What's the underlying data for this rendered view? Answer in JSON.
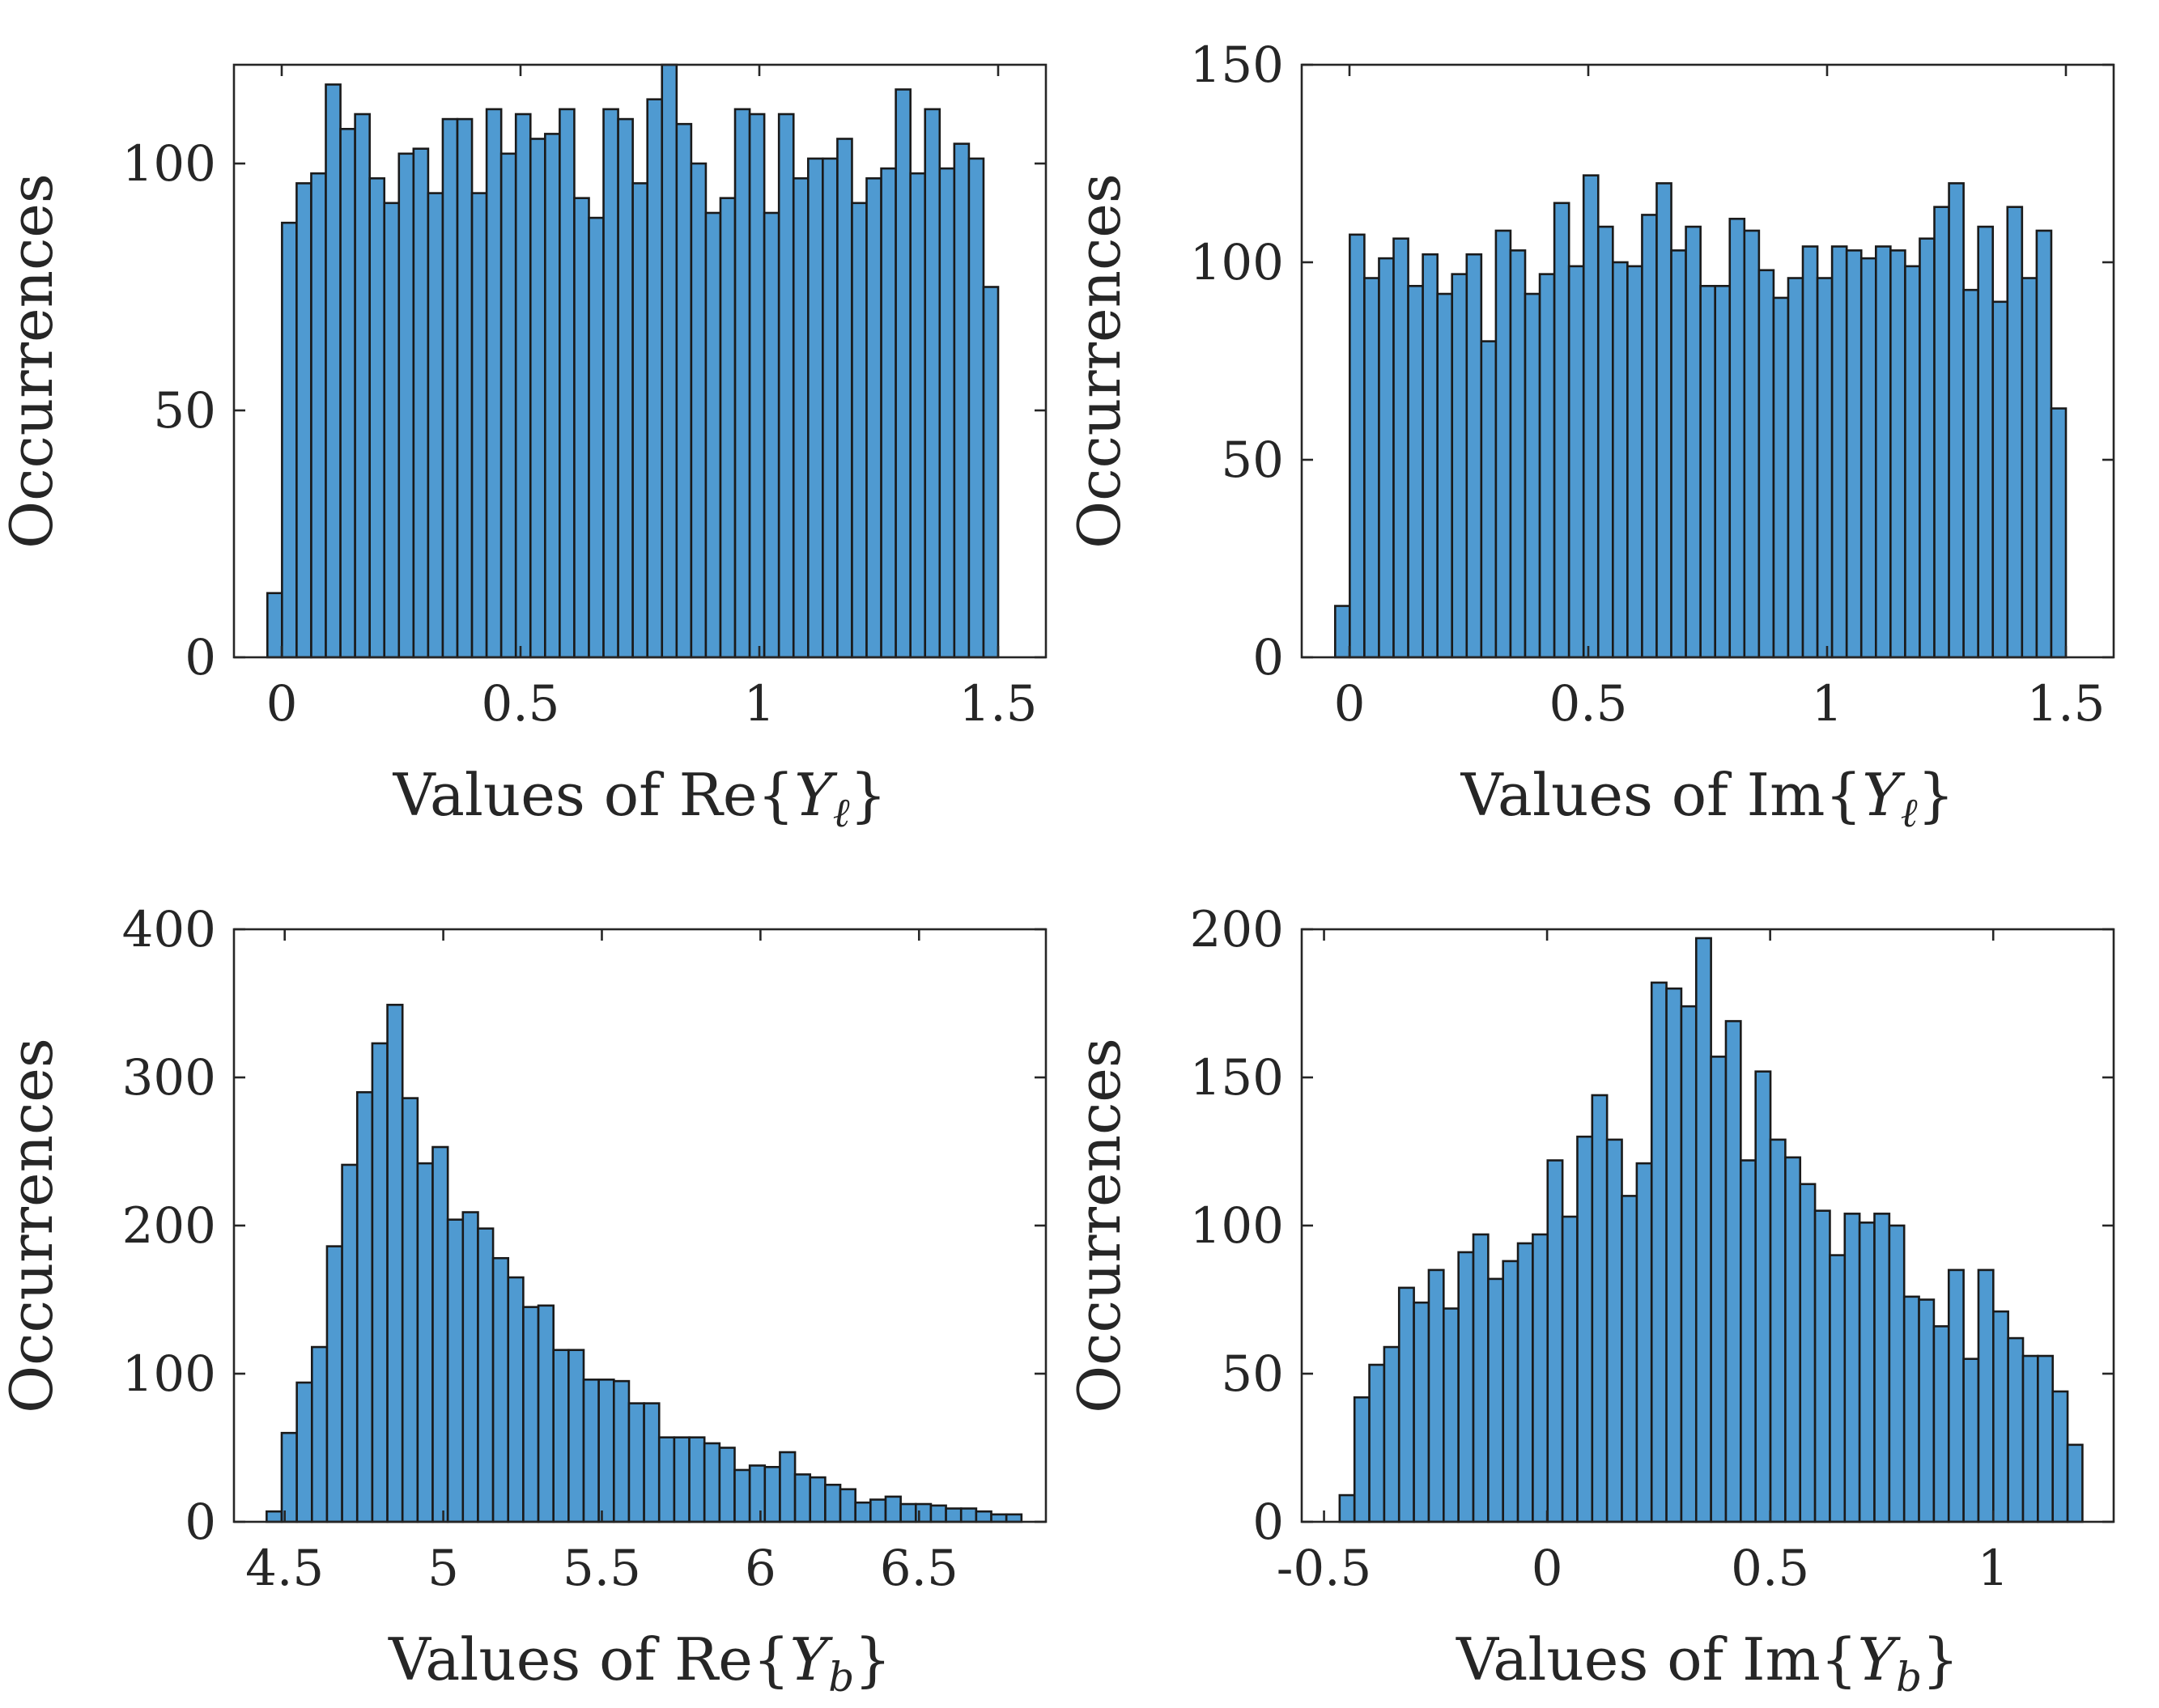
{
  "figure": {
    "description_free": true
  },
  "colors": {
    "bar_fill": "#4f9ad1",
    "bar_edge": "#1a1a1a",
    "axes_edge": "#262626",
    "text": "#262626"
  },
  "chart_data": [
    {
      "id": "re-yl",
      "type": "bar",
      "title": "",
      "xlabel": "Values of Re{Y_ℓ}",
      "xlabel_parts": {
        "prefix": "Values of Re{",
        "var": "Y",
        "sub": "ℓ",
        "suffix": "}"
      },
      "ylabel": "Occurrences",
      "xlim": [
        -0.1,
        1.6
      ],
      "ylim": [
        0,
        120
      ],
      "xticks": [
        0,
        0.5,
        1,
        1.5
      ],
      "xtick_labels": [
        "0",
        "0.5",
        "1",
        "1.5"
      ],
      "yticks": [
        0,
        50,
        100
      ],
      "ytick_labels": [
        "0",
        "50",
        "100"
      ],
      "bin_start": -0.03,
      "bin_width": 0.0306,
      "values": [
        13,
        88,
        96,
        98,
        116,
        107,
        110,
        97,
        92,
        102,
        103,
        94,
        109,
        109,
        94,
        111,
        102,
        110,
        105,
        106,
        111,
        93,
        89,
        111,
        109,
        96,
        113,
        120,
        108,
        100,
        90,
        93,
        111,
        110,
        90,
        110,
        97,
        101,
        101,
        105,
        92,
        97,
        99,
        115,
        98,
        111,
        99,
        104,
        101,
        75
      ]
    },
    {
      "id": "im-yl",
      "type": "bar",
      "title": "",
      "xlabel": "Values of Im{Y_ℓ}",
      "xlabel_parts": {
        "prefix": "Values of Im{",
        "var": "Y",
        "sub": "ℓ",
        "suffix": "}"
      },
      "ylabel": "Occurrences",
      "xlim": [
        -0.1,
        1.6
      ],
      "ylim": [
        0,
        150
      ],
      "xticks": [
        0,
        0.5,
        1,
        1.5
      ],
      "xtick_labels": [
        "0",
        "0.5",
        "1",
        "1.5"
      ],
      "yticks": [
        0,
        50,
        100,
        150
      ],
      "ytick_labels": [
        "0",
        "50",
        "100",
        "150"
      ],
      "bin_start": -0.03,
      "bin_width": 0.0306,
      "values": [
        13,
        107,
        96,
        101,
        106,
        94,
        102,
        92,
        97,
        102,
        80,
        108,
        103,
        92,
        97,
        115,
        99,
        122,
        109,
        100,
        99,
        112,
        120,
        103,
        109,
        94,
        94,
        111,
        108,
        98,
        91,
        96,
        104,
        96,
        104,
        103,
        101,
        104,
        103,
        99,
        106,
        114,
        120,
        93,
        109,
        90,
        114,
        96,
        108,
        63
      ]
    },
    {
      "id": "re-yb",
      "type": "bar",
      "title": "",
      "xlabel": "Values of Re{Y_b}",
      "xlabel_parts": {
        "prefix": "Values of Re{",
        "var": "Y",
        "sub": "b",
        "suffix": "}"
      },
      "ylabel": "Occurrences",
      "xlim": [
        4.34,
        6.9
      ],
      "ylim": [
        0,
        400
      ],
      "xticks": [
        4.5,
        5,
        5.5,
        6,
        6.5
      ],
      "xtick_labels": [
        "4.5",
        "5",
        "5.5",
        "6",
        "6.5"
      ],
      "yticks": [
        0,
        100,
        200,
        300,
        400
      ],
      "ytick_labels": [
        "0",
        "100",
        "200",
        "300",
        "400"
      ],
      "bin_start": 4.443,
      "bin_width": 0.0476,
      "values": [
        7,
        60,
        94,
        118,
        186,
        241,
        290,
        323,
        349,
        286,
        242,
        253,
        204,
        209,
        198,
        178,
        165,
        145,
        146,
        116,
        116,
        96,
        96,
        95,
        80,
        80,
        57,
        57,
        57,
        53,
        50,
        35,
        38,
        37,
        47,
        32,
        30,
        25,
        22,
        13,
        15,
        17,
        12,
        12,
        11,
        9,
        9,
        7,
        5,
        5
      ]
    },
    {
      "id": "im-yb",
      "type": "bar",
      "title": "",
      "xlabel": "Values of Im{Y_b}",
      "xlabel_parts": {
        "prefix": "Values of Im{",
        "var": "Y",
        "sub": "b",
        "suffix": "}"
      },
      "ylabel": "Occurrences",
      "xlim": [
        -0.55,
        1.27
      ],
      "ylim": [
        0,
        200
      ],
      "xticks": [
        -0.5,
        0,
        0.5,
        1
      ],
      "xtick_labels": [
        "-0.5",
        "0",
        "0.5",
        "1"
      ],
      "yticks": [
        0,
        50,
        100,
        150,
        200
      ],
      "ytick_labels": [
        "0",
        "50",
        "100",
        "150",
        "200"
      ],
      "bin_start": -0.465,
      "bin_width": 0.0333,
      "values": [
        9,
        42,
        53,
        59,
        79,
        74,
        85,
        72,
        91,
        97,
        82,
        88,
        94,
        97,
        122,
        103,
        130,
        144,
        129,
        110,
        121,
        182,
        180,
        174,
        197,
        157,
        169,
        122,
        152,
        129,
        123,
        114,
        105,
        90,
        104,
        101,
        104,
        100,
        76,
        75,
        66,
        85,
        55,
        85,
        71,
        62,
        56,
        56,
        44,
        26
      ]
    }
  ]
}
